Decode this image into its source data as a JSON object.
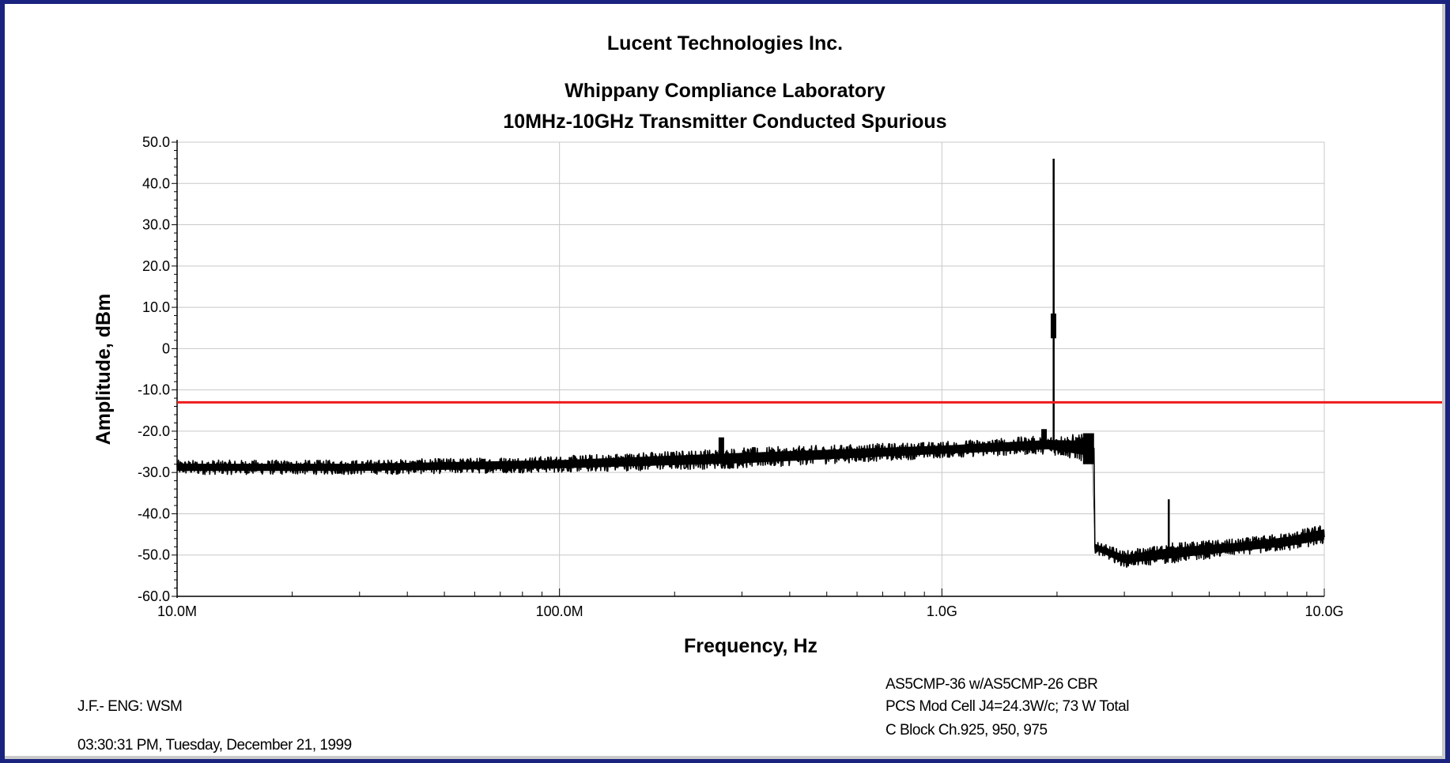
{
  "header": {
    "line1": "Lucent Technologies Inc.",
    "line2": "Whippany Compliance Laboratory",
    "line3": "10MHz-10GHz Transmitter Conducted Spurious"
  },
  "footer": {
    "operator": "J.F.- ENG: WSM",
    "timestamp": "03:30:31 PM, Tuesday, December 21, 1999",
    "note1": "AS5CMP-36  w/AS5CMP-26 CBR",
    "note2": "PCS Mod Cell J4=24.3W/c; 73 W Total",
    "note3": "C Block  Ch.925, 950, 975"
  },
  "chart_data": {
    "type": "line",
    "title": "10MHz-10GHz Transmitter Conducted Spurious",
    "xlabel": "Frequency, Hz",
    "ylabel": "Amplitude, dBm",
    "x_scale": "log",
    "xlim": [
      10000000,
      10000000000
    ],
    "ylim": [
      -60,
      50
    ],
    "grid": true,
    "x_ticks": [
      {
        "value": 10000000,
        "label": "10.0M"
      },
      {
        "value": 100000000,
        "label": "100.0M"
      },
      {
        "value": 1000000000,
        "label": "1.0G"
      },
      {
        "value": 10000000000,
        "label": "10.0G"
      }
    ],
    "y_ticks": [
      {
        "value": 50,
        "label": "50.0"
      },
      {
        "value": 40,
        "label": "40.0"
      },
      {
        "value": 30,
        "label": "30.0"
      },
      {
        "value": 20,
        "label": "20.0"
      },
      {
        "value": 10,
        "label": "10.0"
      },
      {
        "value": 0,
        "label": "0"
      },
      {
        "value": -10,
        "label": "-10.0"
      },
      {
        "value": -20,
        "label": "-20.0"
      },
      {
        "value": -30,
        "label": "-30.0"
      },
      {
        "value": -40,
        "label": "-40.0"
      },
      {
        "value": -50,
        "label": "-50.0"
      },
      {
        "value": -60,
        "label": "-60.0"
      }
    ],
    "limit_line": {
      "value": -13,
      "color": "#ee1c1c"
    },
    "series": [
      {
        "color": "#000000",
        "envelope": [
          {
            "x": 10000000,
            "low": -30.5,
            "high": -27.0
          },
          {
            "x": 30000000,
            "low": -30.5,
            "high": -27.0
          },
          {
            "x": 100000000,
            "low": -30.0,
            "high": -26.0
          },
          {
            "x": 300000000,
            "low": -29.0,
            "high": -24.0
          },
          {
            "x": 1000000000,
            "low": -26.5,
            "high": -22.5
          },
          {
            "x": 1900000000,
            "low": -25.5,
            "high": -21.0
          },
          {
            "x": 2500000000,
            "low": -28.0,
            "high": -20.5
          },
          {
            "x": 2510000000,
            "low": -49.5,
            "high": -46.5
          },
          {
            "x": 3000000000,
            "low": -53.0,
            "high": -49.0
          },
          {
            "x": 4000000000,
            "low": -52.0,
            "high": -47.0
          },
          {
            "x": 6000000000,
            "low": -50.0,
            "high": -46.0
          },
          {
            "x": 8000000000,
            "low": -49.0,
            "high": -44.5
          },
          {
            "x": 10000000000,
            "low": -47.5,
            "high": -42.5
          }
        ],
        "spikes": [
          {
            "x": 1960000000,
            "low": -23,
            "high": 46
          },
          {
            "x": 1958000000,
            "low": 2.5,
            "high": 8.5
          },
          {
            "x": 3920000000,
            "low": -50,
            "high": -36.5
          },
          {
            "x": 265000000,
            "low": -27,
            "high": -21.5
          },
          {
            "x": 1850000000,
            "low": -23,
            "high": -19.5
          }
        ]
      }
    ]
  }
}
